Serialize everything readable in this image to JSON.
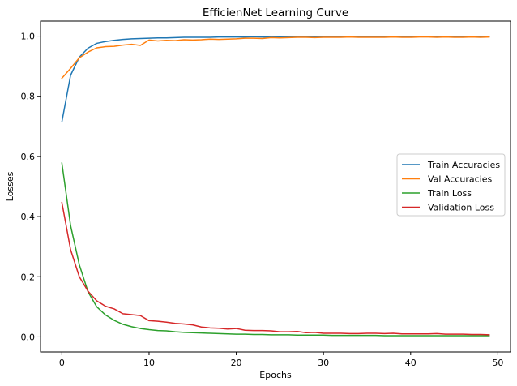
{
  "chart_data": {
    "type": "line",
    "title": "EfficienNet Learning Curve",
    "xlabel": "Epochs",
    "ylabel": "Losses",
    "xlim": [
      -2.45,
      51.45
    ],
    "ylim": [
      -0.05,
      1.05
    ],
    "xticks": [
      0,
      10,
      20,
      30,
      40,
      50
    ],
    "yticks": [
      0.0,
      0.2,
      0.4,
      0.6,
      0.8,
      1.0
    ],
    "xtick_labels": [
      "0",
      "10",
      "20",
      "30",
      "40",
      "50"
    ],
    "ytick_labels": [
      "0.0",
      "0.2",
      "0.4",
      "0.6",
      "0.8",
      "1.0"
    ],
    "legend_position": "center-right",
    "grid": false,
    "x": [
      0,
      1,
      2,
      3,
      4,
      5,
      6,
      7,
      8,
      9,
      10,
      11,
      12,
      13,
      14,
      15,
      16,
      17,
      18,
      19,
      20,
      21,
      22,
      23,
      24,
      25,
      26,
      27,
      28,
      29,
      30,
      31,
      32,
      33,
      34,
      35,
      36,
      37,
      38,
      39,
      40,
      41,
      42,
      43,
      44,
      45,
      46,
      47,
      48,
      49
    ],
    "series": [
      {
        "name": "Train Accuracies",
        "color": "#1f77b4",
        "values": [
          0.715,
          0.87,
          0.93,
          0.96,
          0.976,
          0.982,
          0.986,
          0.989,
          0.991,
          0.992,
          0.993,
          0.994,
          0.994,
          0.995,
          0.996,
          0.996,
          0.996,
          0.996,
          0.997,
          0.997,
          0.997,
          0.997,
          0.998,
          0.997,
          0.997,
          0.997,
          0.998,
          0.998,
          0.998,
          0.997,
          0.998,
          0.998,
          0.998,
          0.998,
          0.998,
          0.998,
          0.998,
          0.998,
          0.998,
          0.998,
          0.998,
          0.998,
          0.998,
          0.998,
          0.998,
          0.998,
          0.998,
          0.998,
          0.998,
          0.998
        ]
      },
      {
        "name": "Val Accuracies",
        "color": "#ff7f0e",
        "values": [
          0.86,
          0.893,
          0.928,
          0.947,
          0.961,
          0.965,
          0.966,
          0.97,
          0.973,
          0.969,
          0.987,
          0.984,
          0.986,
          0.985,
          0.988,
          0.987,
          0.988,
          0.99,
          0.989,
          0.99,
          0.991,
          0.993,
          0.993,
          0.992,
          0.995,
          0.994,
          0.995,
          0.996,
          0.996,
          0.995,
          0.996,
          0.996,
          0.996,
          0.997,
          0.996,
          0.996,
          0.996,
          0.996,
          0.997,
          0.996,
          0.996,
          0.997,
          0.997,
          0.996,
          0.997,
          0.996,
          0.996,
          0.997,
          0.996,
          0.997
        ]
      },
      {
        "name": "Train Loss",
        "color": "#2ca02c",
        "values": [
          0.578,
          0.37,
          0.24,
          0.15,
          0.1,
          0.073,
          0.055,
          0.042,
          0.034,
          0.028,
          0.024,
          0.021,
          0.02,
          0.017,
          0.015,
          0.014,
          0.013,
          0.012,
          0.011,
          0.01,
          0.009,
          0.009,
          0.008,
          0.008,
          0.007,
          0.007,
          0.007,
          0.006,
          0.006,
          0.006,
          0.006,
          0.005,
          0.005,
          0.005,
          0.005,
          0.005,
          0.005,
          0.004,
          0.004,
          0.004,
          0.004,
          0.004,
          0.004,
          0.004,
          0.004,
          0.004,
          0.004,
          0.004,
          0.004,
          0.004
        ]
      },
      {
        "name": "Validation Loss",
        "color": "#d62728",
        "values": [
          0.447,
          0.29,
          0.2,
          0.152,
          0.12,
          0.102,
          0.093,
          0.077,
          0.074,
          0.071,
          0.054,
          0.052,
          0.049,
          0.045,
          0.043,
          0.04,
          0.033,
          0.03,
          0.029,
          0.026,
          0.028,
          0.022,
          0.021,
          0.021,
          0.02,
          0.017,
          0.017,
          0.018,
          0.014,
          0.015,
          0.012,
          0.012,
          0.012,
          0.011,
          0.011,
          0.012,
          0.012,
          0.011,
          0.012,
          0.01,
          0.01,
          0.01,
          0.01,
          0.011,
          0.009,
          0.009,
          0.009,
          0.008,
          0.008,
          0.007
        ]
      }
    ]
  }
}
